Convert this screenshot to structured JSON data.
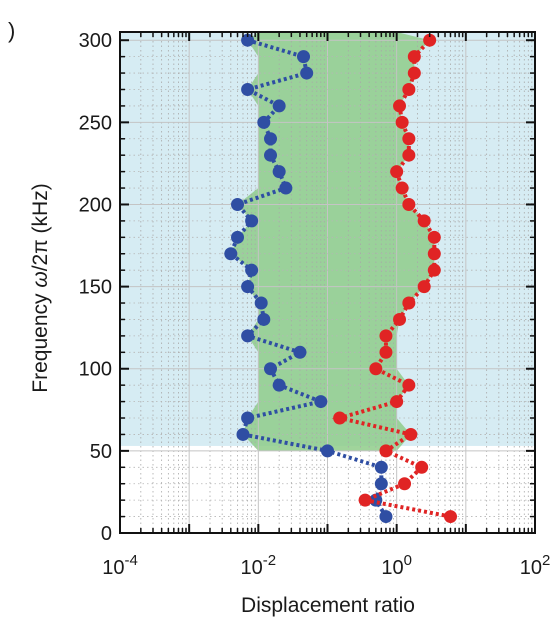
{
  "panel_label": ")",
  "chart_data": {
    "type": "scatter",
    "title": "",
    "xlabel": "Displacement ratio",
    "ylabel_parts": [
      "Frequency ",
      "ω",
      "/2π (kHz)"
    ],
    "x_scale": "log",
    "xlim": [
      0.0001,
      100
    ],
    "ylim": [
      0,
      305
    ],
    "x_ticks": [
      {
        "value": 0.0001,
        "base": "10",
        "exp": "-4"
      },
      {
        "value": 0.01,
        "base": "10",
        "exp": "-2"
      },
      {
        "value": 1,
        "base": "10",
        "exp": "0"
      },
      {
        "value": 100,
        "base": "10",
        "exp": "2"
      }
    ],
    "y_ticks": [
      {
        "value": 0,
        "label": "0"
      },
      {
        "value": 50,
        "label": "50"
      },
      {
        "value": 100,
        "label": "100"
      },
      {
        "value": 150,
        "label": "150"
      },
      {
        "value": 200,
        "label": "200"
      },
      {
        "value": 250,
        "label": "250"
      },
      {
        "value": 300,
        "label": "300"
      }
    ],
    "grid": true,
    "shading": {
      "band_color": "#d6ecf3",
      "band_y_range": [
        53,
        305
      ],
      "green_color": "#8fcd8a",
      "green_region_left_x": [
        0.01,
        0.01
      ],
      "green_region_right_x": [
        1,
        1
      ]
    },
    "series": [
      {
        "color": "#2f4ea3",
        "y": [
          10,
          20,
          30,
          40,
          50,
          60,
          70,
          80,
          90,
          100,
          110,
          120,
          130,
          140,
          150,
          160,
          170,
          180,
          190,
          200,
          210,
          220,
          230,
          240,
          250,
          260,
          270,
          280,
          290,
          300
        ],
        "x": [
          0.7,
          0.5,
          0.6,
          0.6,
          0.1,
          0.006,
          0.007,
          0.08,
          0.02,
          0.015,
          0.04,
          0.007,
          0.012,
          0.011,
          0.007,
          0.008,
          0.004,
          0.005,
          0.008,
          0.005,
          0.025,
          0.02,
          0.015,
          0.015,
          0.012,
          0.02,
          0.007,
          0.05,
          0.045,
          0.007
        ]
      },
      {
        "color": "#e02424",
        "y": [
          10,
          20,
          30,
          40,
          50,
          60,
          70,
          80,
          90,
          100,
          110,
          120,
          130,
          140,
          150,
          160,
          170,
          180,
          190,
          200,
          210,
          220,
          230,
          240,
          250,
          260,
          270,
          280,
          290,
          300
        ],
        "x": [
          6,
          0.35,
          1.3,
          2.3,
          0.7,
          1.6,
          0.15,
          1,
          1.5,
          0.5,
          0.7,
          0.7,
          1.1,
          1.5,
          2.5,
          3.5,
          3.5,
          3.5,
          2.5,
          1.5,
          1.2,
          1,
          1.5,
          1.5,
          1.2,
          1.1,
          1.5,
          1.8,
          1.8,
          3
        ]
      }
    ]
  }
}
